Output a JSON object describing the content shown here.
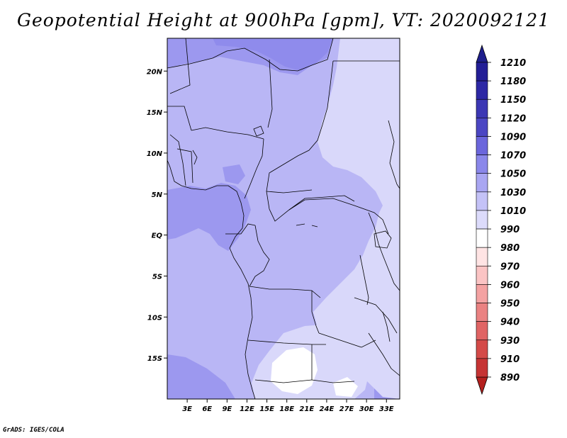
{
  "title": "Geopotential Height at 900hPa [gpm], VT: 2020092121",
  "credit": "GrADS: IGES/COLA",
  "chart_data": {
    "type": "map-filled-contour",
    "variable": "Geopotential Height",
    "level": "900hPa",
    "units": "gpm",
    "valid_time": "2020092121",
    "lon_range": [
      0,
      35
    ],
    "lat_range": [
      -20,
      24
    ],
    "x_ticks": [
      {
        "value": 3,
        "label": "3E"
      },
      {
        "value": 6,
        "label": "6E"
      },
      {
        "value": 9,
        "label": "9E"
      },
      {
        "value": 12,
        "label": "12E"
      },
      {
        "value": 15,
        "label": "15E"
      },
      {
        "value": 18,
        "label": "18E"
      },
      {
        "value": 21,
        "label": "21E"
      },
      {
        "value": 24,
        "label": "24E"
      },
      {
        "value": 27,
        "label": "27E"
      },
      {
        "value": 30,
        "label": "30E"
      },
      {
        "value": 33,
        "label": "33E"
      }
    ],
    "y_ticks": [
      {
        "value": 20,
        "label": "20N"
      },
      {
        "value": 15,
        "label": "15N"
      },
      {
        "value": 10,
        "label": "10N"
      },
      {
        "value": 5,
        "label": "5N"
      },
      {
        "value": 0,
        "label": "EQ"
      },
      {
        "value": -5,
        "label": "5S"
      },
      {
        "value": -10,
        "label": "10S"
      },
      {
        "value": -15,
        "label": "15S"
      }
    ],
    "colorbar": {
      "orientation": "vertical",
      "top_arrow_color": "#1e1e8c",
      "bottom_arrow_color": "#b4201e",
      "levels": [
        {
          "label": "1210",
          "color": "#231e96"
        },
        {
          "label": "1180",
          "color": "#2d28a5"
        },
        {
          "label": "1150",
          "color": "#3c37b4"
        },
        {
          "label": "1120",
          "color": "#4b46c3"
        },
        {
          "label": "1090",
          "color": "#6b66dc"
        },
        {
          "label": "1070",
          "color": "#8a87ea"
        },
        {
          "label": "1050",
          "color": "#a9a6f2"
        },
        {
          "label": "1030",
          "color": "#c4c2f7"
        },
        {
          "label": "1010",
          "color": "#dcdbfb"
        },
        {
          "label": "990",
          "color": "#ffffff"
        },
        {
          "label": "980",
          "color": "#ffe4e4"
        },
        {
          "label": "970",
          "color": "#fbc4c4"
        },
        {
          "label": "960",
          "color": "#f4a2a2"
        },
        {
          "label": "950",
          "color": "#ea8282"
        },
        {
          "label": "940",
          "color": "#e06464"
        },
        {
          "label": "930",
          "color": "#d44a48"
        },
        {
          "label": "910",
          "color": "#c63434"
        },
        {
          "label": "890",
          "color": "#b42620"
        }
      ]
    },
    "field_regions": [
      {
        "name": "base",
        "value": 1040,
        "color": "#b9b6f5"
      },
      {
        "name": "north-strong-high",
        "value": 1060,
        "color": "#9c98ef"
      },
      {
        "name": "gulf-of-guinea-high",
        "value": 1060,
        "color": "#9c98ef"
      },
      {
        "name": "sw-atlantic-high",
        "value": 1060,
        "color": "#9c98ef"
      },
      {
        "name": "east-africa-low",
        "value": 1020,
        "color": "#d9d8fa"
      },
      {
        "name": "southern-africa-low",
        "value": 1020,
        "color": "#d9d8fa"
      },
      {
        "name": "kalahari-min",
        "value": 1000,
        "color": "#ffffff"
      }
    ]
  }
}
